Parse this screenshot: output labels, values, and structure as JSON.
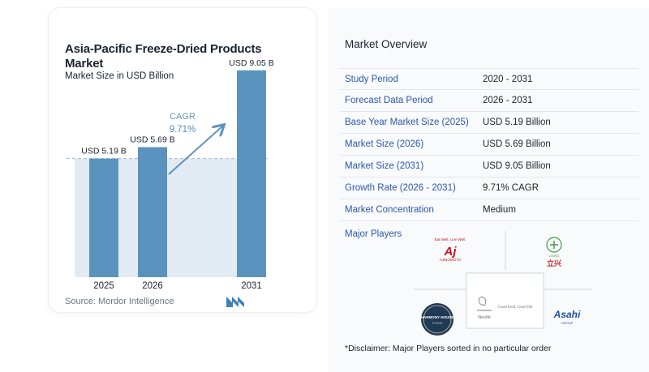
{
  "chart": {
    "title": "Asia-Pacific Freeze-Dried Products Market",
    "subtitle": "Market Size in USD Billion",
    "source": "Source:  Mordor Intelligence",
    "cagr_label": "CAGR",
    "cagr_value": "9.71%"
  },
  "chart_data": {
    "type": "bar",
    "title": "Asia-Pacific Freeze-Dried Products Market",
    "subtitle": "Market Size in USD Billion",
    "categories": [
      "2025",
      "2026",
      "2031"
    ],
    "values": [
      5.19,
      5.69,
      9.05
    ],
    "data_labels": [
      "USD 5.19 B",
      "USD 5.69 B",
      "USD 9.05 B"
    ],
    "annotation": "CAGR 9.71%",
    "ylim": [
      0,
      10
    ],
    "grid": false,
    "bar_color": "#5b93bf"
  },
  "overview": {
    "title": "Market Overview",
    "rows": [
      {
        "label": "Study Period",
        "value": "2020 - 2031"
      },
      {
        "label": "Forecast Data Period",
        "value": "2026 - 2031"
      },
      {
        "label": "Base Year Market Size (2025)",
        "value": "USD 5.19 Billion"
      },
      {
        "label": "Market Size (2026)",
        "value": "USD 5.69 Billion"
      },
      {
        "label": "Market Size (2031)",
        "value": "USD 9.05 Billion"
      },
      {
        "label": "Growth Rate (2026 - 2031)",
        "value": "9.71% CAGR"
      },
      {
        "label": "Market Concentration",
        "value": "Medium"
      }
    ]
  },
  "players": {
    "title": "Major Players",
    "logos": [
      {
        "name": "ajinomoto-logo",
        "tagline": "Eat Well, Live Well.",
        "text": "AJINOMOTO"
      },
      {
        "name": "lixing-logo",
        "text": "LIXING",
        "cn": "立兴"
      },
      {
        "name": "harmony-house-logo",
        "text": "HARMONY HOUSE",
        "sub": "FOODS"
      },
      {
        "name": "nestle-logo",
        "text": "Nestlé",
        "tagline": "Good food, Good life"
      },
      {
        "name": "asahi-logo",
        "text": "Asahi",
        "sub": "GROUP"
      }
    ]
  },
  "disclaimer": "*Disclaimer: Major Players sorted in no particular order",
  "colors": {
    "bar": "#5b93bf",
    "bar_light": "#e2ebf4",
    "accent": "#2a57b0",
    "text": "#1b2330"
  }
}
